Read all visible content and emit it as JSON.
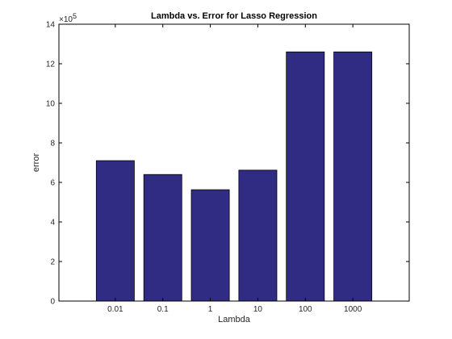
{
  "chart_data": {
    "type": "bar",
    "title": "Lambda vs. Error for Lasso Regression",
    "xlabel": "Lambda",
    "ylabel": "error",
    "categories": [
      "0.01",
      "0.1",
      "1",
      "10",
      "100",
      "1000"
    ],
    "values": [
      710000,
      640000,
      563000,
      662000,
      1260000,
      1260000
    ],
    "ylim": [
      0,
      1400000
    ],
    "yticks": [
      "0",
      "2",
      "4",
      "6",
      "8",
      "10",
      "12",
      "14"
    ],
    "y_exponent_prefix": "×10",
    "y_exponent": "5",
    "grid": false,
    "legend": "none",
    "bar_color": "#312c83",
    "bar_edge_color": "#000000"
  }
}
